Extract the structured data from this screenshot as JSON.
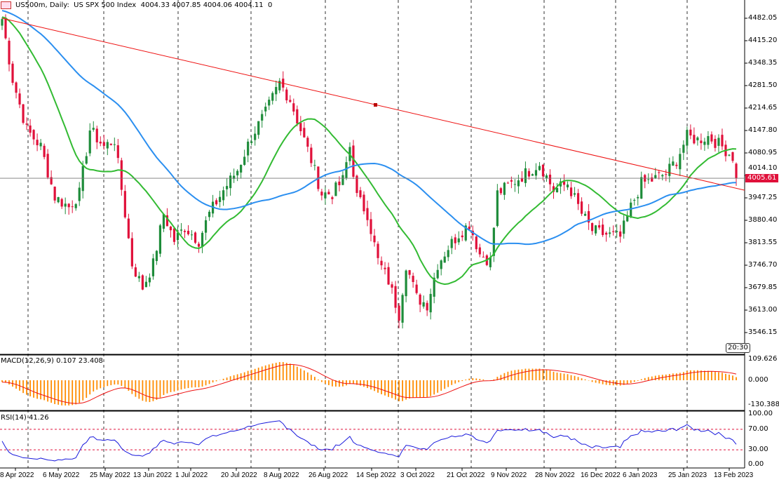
{
  "header": {
    "symbol": "US500m",
    "timeframe": "Daily",
    "description": "US SPX 500 Index",
    "open": "4004.33",
    "high": "4007.85",
    "low": "4004.06",
    "close": "4004.11",
    "volume": "0"
  },
  "current_price": "4005.61",
  "clock": "20:30",
  "macd": {
    "label": "MACD(12,26,9) 0.107 23.408",
    "ticks": [
      "109.626",
      "0.000",
      "-130.388"
    ]
  },
  "rsi": {
    "label": "RSI(14) 41.26",
    "ticks": [
      "100.00",
      "70.00",
      "30.00",
      "0.00"
    ]
  },
  "colors": {
    "bull": "#1e8c3a",
    "bear": "#e0103a",
    "ma_fast": "#33bb33",
    "ma_slow": "#2b8ff0",
    "trend": "#ee1111",
    "macd_hist": "#ff8c00",
    "macd_signal": "#ee1111",
    "rsi": "#1a1adc"
  },
  "chart_data": {
    "type": "candlestick",
    "title": "US500m, Daily: US SPX 500 Index",
    "y_ticks": [
      "4482.05",
      "4415.20",
      "4348.35",
      "4281.50",
      "4214.65",
      "4147.80",
      "4080.95",
      "4014.10",
      "3947.25",
      "3880.40",
      "3813.55",
      "3746.70",
      "3679.85",
      "3613.00",
      "3546.15"
    ],
    "ylim": [
      3480,
      4520
    ],
    "x_ticks": [
      "8 Apr 2022",
      "6 May 2022",
      "25 May 2022",
      "13 Jun 2022",
      "1 Jul 2022",
      "20 Jul 2022",
      "8 Aug 2022",
      "26 Aug 2022",
      "14 Sep 2022",
      "3 Oct 2022",
      "21 Oct 2022",
      "9 Nov 2022",
      "28 Nov 2022",
      "16 Dec 2022",
      "6 Jan 2023",
      "25 Jan 2023",
      "13 Feb 2023"
    ],
    "bars": 210,
    "approx_close_path": [
      [
        0,
        4480
      ],
      [
        3,
        4300
      ],
      [
        7,
        4150
      ],
      [
        11,
        4100
      ],
      [
        15,
        3950
      ],
      [
        19,
        3920
      ],
      [
        22,
        3960
      ],
      [
        25,
        4150
      ],
      [
        29,
        4100
      ],
      [
        32,
        4120
      ],
      [
        35,
        3900
      ],
      [
        37,
        3750
      ],
      [
        40,
        3680
      ],
      [
        43,
        3750
      ],
      [
        46,
        3900
      ],
      [
        49,
        3820
      ],
      [
        52,
        3860
      ],
      [
        56,
        3820
      ],
      [
        59,
        3900
      ],
      [
        63,
        3970
      ],
      [
        67,
        4030
      ],
      [
        71,
        4130
      ],
      [
        75,
        4200
      ],
      [
        79,
        4290
      ],
      [
        82,
        4240
      ],
      [
        85,
        4150
      ],
      [
        88,
        4060
      ],
      [
        91,
        3960
      ],
      [
        94,
        3960
      ],
      [
        97,
        4000
      ],
      [
        99,
        4100
      ],
      [
        101,
        3950
      ],
      [
        104,
        3900
      ],
      [
        107,
        3760
      ],
      [
        110,
        3700
      ],
      [
        113,
        3600
      ],
      [
        115,
        3750
      ],
      [
        118,
        3650
      ],
      [
        121,
        3630
      ],
      [
        124,
        3750
      ],
      [
        127,
        3800
      ],
      [
        130,
        3840
      ],
      [
        133,
        3870
      ],
      [
        136,
        3780
      ],
      [
        139,
        3760
      ],
      [
        141,
        3960
      ],
      [
        145,
        3990
      ],
      [
        149,
        4020
      ],
      [
        153,
        4050
      ],
      [
        157,
        3970
      ],
      [
        161,
        3990
      ],
      [
        165,
        3900
      ],
      [
        168,
        3850
      ],
      [
        171,
        3840
      ],
      [
        176,
        3830
      ],
      [
        179,
        3920
      ],
      [
        182,
        3990
      ],
      [
        185,
        4000
      ],
      [
        189,
        4020
      ],
      [
        192,
        4060
      ],
      [
        195,
        4130
      ],
      [
        198,
        4120
      ],
      [
        201,
        4130
      ],
      [
        205,
        4100
      ],
      [
        208,
        4070
      ],
      [
        209,
        4005
      ]
    ],
    "trendline": [
      [
        0,
        4482
      ],
      [
        210,
        3970
      ]
    ],
    "indicators": [
      "MA 20",
      "MA 50",
      "MACD(12,26,9)",
      "RSI(14)"
    ],
    "rsi_levels": [
      70,
      30
    ]
  }
}
